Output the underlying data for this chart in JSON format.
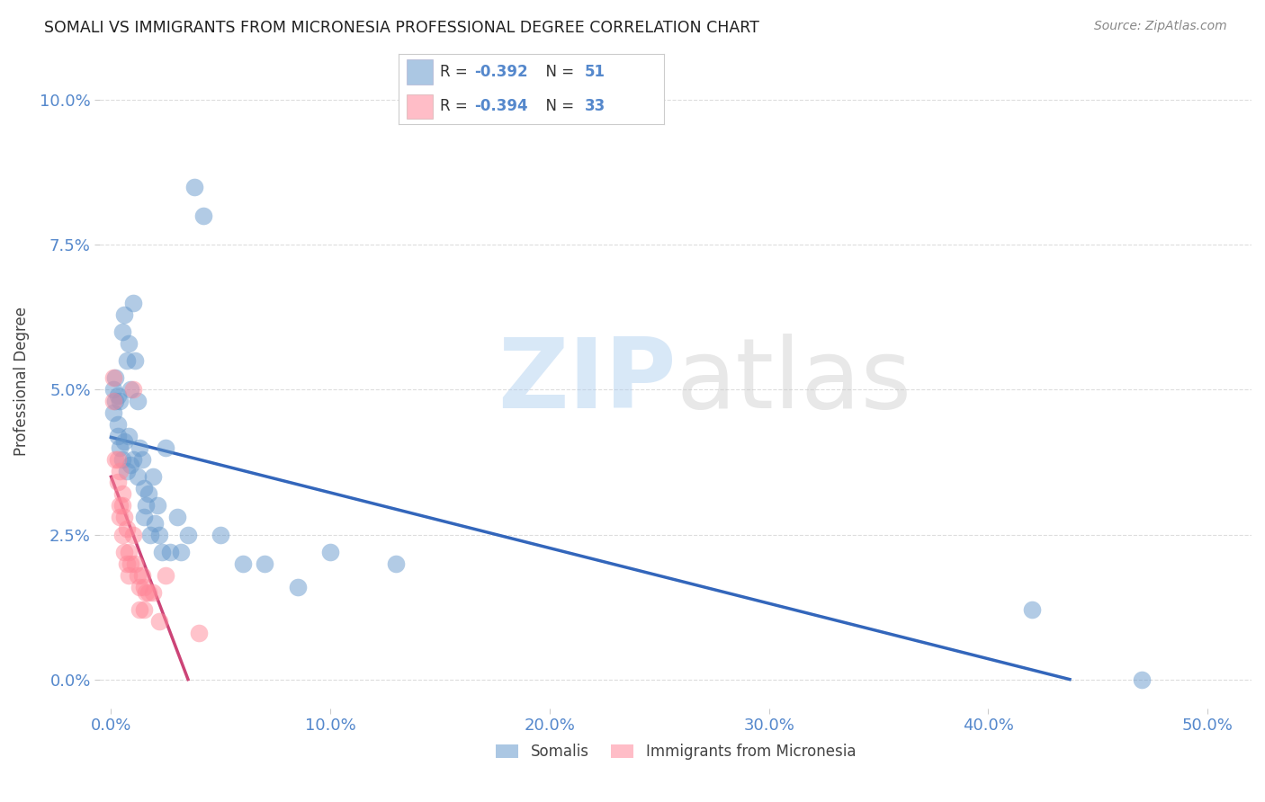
{
  "title": "SOMALI VS IMMIGRANTS FROM MICRONESIA PROFESSIONAL DEGREE CORRELATION CHART",
  "source": "Source: ZipAtlas.com",
  "ylabel": "Professional Degree",
  "xlim": [
    -0.005,
    0.52
  ],
  "ylim": [
    -0.005,
    0.108
  ],
  "somali_R": -0.392,
  "somali_N": 51,
  "micronesia_R": -0.394,
  "micronesia_N": 33,
  "somali_color": "#6699CC",
  "micronesia_color": "#FF8899",
  "somali_line_color": "#3366BB",
  "micronesia_line_color": "#CC4477",
  "legend_text_color": "#5588CC",
  "tick_color": "#5588CC",
  "grid_color": "#DDDDDD",
  "background_color": "#FFFFFF",
  "somali_x": [
    0.001,
    0.001,
    0.002,
    0.002,
    0.003,
    0.003,
    0.003,
    0.004,
    0.004,
    0.005,
    0.005,
    0.006,
    0.006,
    0.007,
    0.007,
    0.008,
    0.008,
    0.009,
    0.009,
    0.01,
    0.01,
    0.011,
    0.012,
    0.012,
    0.013,
    0.014,
    0.015,
    0.015,
    0.016,
    0.017,
    0.018,
    0.019,
    0.02,
    0.021,
    0.022,
    0.023,
    0.025,
    0.027,
    0.03,
    0.032,
    0.035,
    0.038,
    0.042,
    0.05,
    0.06,
    0.07,
    0.085,
    0.1,
    0.13,
    0.42,
    0.47
  ],
  "somali_y": [
    0.05,
    0.046,
    0.052,
    0.048,
    0.049,
    0.044,
    0.042,
    0.048,
    0.04,
    0.06,
    0.038,
    0.063,
    0.041,
    0.055,
    0.036,
    0.058,
    0.042,
    0.05,
    0.037,
    0.065,
    0.038,
    0.055,
    0.048,
    0.035,
    0.04,
    0.038,
    0.033,
    0.028,
    0.03,
    0.032,
    0.025,
    0.035,
    0.027,
    0.03,
    0.025,
    0.022,
    0.04,
    0.022,
    0.028,
    0.022,
    0.025,
    0.085,
    0.08,
    0.025,
    0.02,
    0.02,
    0.016,
    0.022,
    0.02,
    0.012,
    0.0
  ],
  "micronesia_x": [
    0.001,
    0.001,
    0.002,
    0.003,
    0.003,
    0.004,
    0.004,
    0.004,
    0.005,
    0.005,
    0.005,
    0.006,
    0.006,
    0.007,
    0.007,
    0.008,
    0.008,
    0.009,
    0.01,
    0.01,
    0.011,
    0.012,
    0.013,
    0.013,
    0.014,
    0.015,
    0.015,
    0.016,
    0.017,
    0.019,
    0.022,
    0.025,
    0.04
  ],
  "micronesia_y": [
    0.052,
    0.048,
    0.038,
    0.038,
    0.034,
    0.036,
    0.03,
    0.028,
    0.032,
    0.03,
    0.025,
    0.028,
    0.022,
    0.026,
    0.02,
    0.022,
    0.018,
    0.02,
    0.05,
    0.025,
    0.02,
    0.018,
    0.016,
    0.012,
    0.018,
    0.016,
    0.012,
    0.015,
    0.015,
    0.015,
    0.01,
    0.018,
    0.008
  ],
  "xlabel_ticks": [
    "0.0%",
    "10.0%",
    "20.0%",
    "30.0%",
    "40.0%",
    "50.0%"
  ],
  "xlabel_tick_vals": [
    0.0,
    0.1,
    0.2,
    0.3,
    0.4,
    0.5
  ],
  "ylabel_ticks": [
    "0.0%",
    "2.5%",
    "5.0%",
    "7.5%",
    "10.0%"
  ],
  "ylabel_tick_vals": [
    0.0,
    0.025,
    0.05,
    0.075,
    0.1
  ]
}
